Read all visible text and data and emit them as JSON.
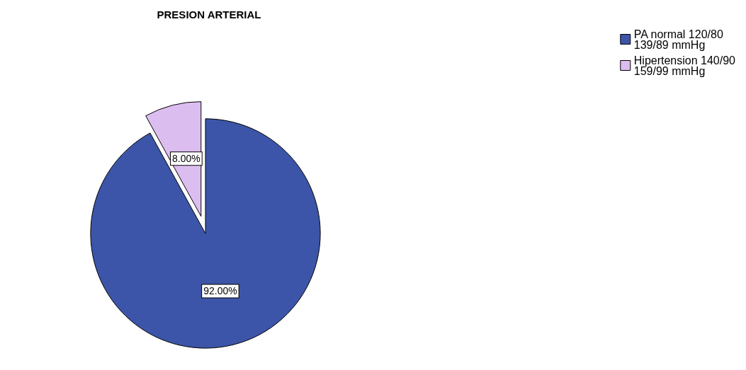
{
  "chart_data": {
    "type": "pie",
    "title": "PRESION ARTERIAL",
    "categories": [
      "PA normal 120/80 139/89 mmHg",
      "Hipertension 140/90 159/99 mmHg"
    ],
    "values": [
      92,
      8
    ],
    "colors": [
      "#3c55a8",
      "#dcbdf0"
    ],
    "value_labels": [
      "92.00%",
      "8.00%"
    ],
    "legend": "top right"
  }
}
